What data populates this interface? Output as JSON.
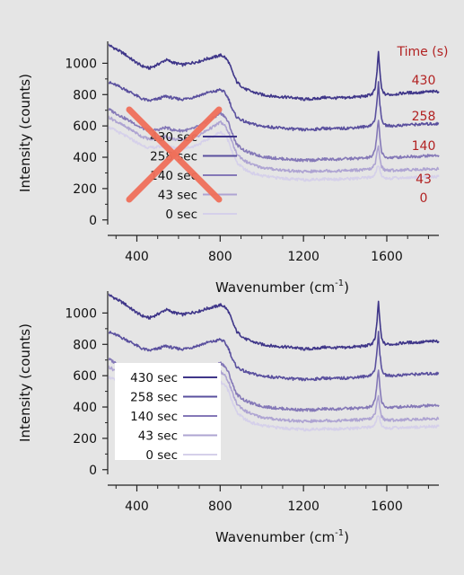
{
  "chart_data": [
    {
      "type": "line",
      "xlabel": "Wavenumber (cm",
      "xlabel_sup": "-1",
      "xlabel_close": ")",
      "ylabel": "Intensity (counts)",
      "xlim": [
        260,
        1850
      ],
      "ylim": [
        -30,
        1140
      ],
      "xticks": [
        400,
        800,
        1200,
        1600
      ],
      "yticks": [
        0,
        200,
        400,
        600,
        800,
        1000
      ],
      "legend": {
        "labels": [
          "430 sec",
          "258 sec",
          "140 sec",
          "43 sec",
          "0 sec"
        ],
        "position": "left",
        "crossed_out": true
      },
      "annotation": {
        "title": "Time (s)",
        "labels": [
          "430",
          "258",
          "140",
          "43",
          "0"
        ],
        "position": "right",
        "color": "#b22222"
      },
      "series": [
        {
          "name": "430 sec",
          "color": "#3f3689",
          "x": [
            260,
            300,
            340,
            380,
            420,
            460,
            500,
            540,
            580,
            620,
            660,
            700,
            740,
            780,
            800,
            820,
            840,
            860,
            880,
            920,
            960,
            1000,
            1050,
            1100,
            1150,
            1200,
            1250,
            1300,
            1350,
            1400,
            1450,
            1500,
            1530,
            1545,
            1553,
            1560,
            1567,
            1575,
            1590,
            1620,
            1660,
            1700,
            1750,
            1800,
            1850
          ],
          "y": [
            1120,
            1090,
            1060,
            1020,
            985,
            968,
            992,
            1022,
            1002,
            990,
            1002,
            1012,
            1030,
            1042,
            1052,
            1042,
            1010,
            940,
            880,
            835,
            815,
            800,
            790,
            785,
            780,
            770,
            772,
            782,
            778,
            780,
            785,
            790,
            805,
            840,
            950,
            1075,
            940,
            835,
            802,
            800,
            806,
            812,
            812,
            818,
            820
          ]
        },
        {
          "name": "258 sec",
          "color": "#5a509e",
          "x": [
            260,
            300,
            340,
            380,
            420,
            460,
            500,
            540,
            580,
            620,
            660,
            700,
            740,
            780,
            800,
            820,
            840,
            860,
            880,
            920,
            960,
            1000,
            1050,
            1100,
            1150,
            1200,
            1250,
            1300,
            1350,
            1400,
            1450,
            1500,
            1530,
            1545,
            1553,
            1560,
            1567,
            1575,
            1590,
            1620,
            1660,
            1700,
            1750,
            1800,
            1850
          ],
          "y": [
            880,
            860,
            835,
            808,
            775,
            760,
            772,
            790,
            775,
            770,
            780,
            795,
            812,
            822,
            832,
            815,
            775,
            700,
            655,
            625,
            610,
            598,
            592,
            585,
            580,
            575,
            578,
            585,
            582,
            585,
            590,
            595,
            610,
            650,
            760,
            880,
            740,
            640,
            605,
            600,
            603,
            608,
            610,
            612,
            615
          ]
        },
        {
          "name": "140 sec",
          "color": "#8478b7",
          "x": [
            260,
            300,
            340,
            380,
            420,
            460,
            500,
            540,
            580,
            620,
            660,
            700,
            740,
            780,
            800,
            820,
            840,
            860,
            880,
            920,
            960,
            1000,
            1050,
            1100,
            1150,
            1200,
            1250,
            1300,
            1350,
            1400,
            1450,
            1500,
            1530,
            1545,
            1553,
            1560,
            1567,
            1575,
            1590,
            1620,
            1660,
            1700,
            1750,
            1800,
            1850
          ],
          "y": [
            710,
            680,
            650,
            622,
            588,
            570,
            575,
            590,
            572,
            570,
            578,
            600,
            632,
            662,
            682,
            665,
            620,
            545,
            480,
            440,
            420,
            405,
            396,
            390,
            385,
            380,
            382,
            388,
            386,
            390,
            392,
            395,
            405,
            450,
            560,
            640,
            530,
            430,
            400,
            398,
            400,
            405,
            405,
            410,
            412
          ]
        },
        {
          "name": "43 sec",
          "color": "#aea4d2",
          "x": [
            260,
            300,
            340,
            380,
            420,
            460,
            500,
            540,
            580,
            620,
            660,
            700,
            740,
            780,
            800,
            820,
            840,
            860,
            880,
            920,
            960,
            1000,
            1050,
            1100,
            1150,
            1200,
            1250,
            1300,
            1350,
            1400,
            1450,
            1500,
            1530,
            1545,
            1553,
            1560,
            1567,
            1575,
            1590,
            1620,
            1660,
            1700,
            1750,
            1800,
            1850
          ],
          "y": [
            660,
            630,
            598,
            570,
            535,
            515,
            520,
            532,
            515,
            512,
            520,
            540,
            575,
            605,
            625,
            605,
            562,
            485,
            420,
            375,
            350,
            335,
            325,
            318,
            312,
            308,
            310,
            315,
            312,
            315,
            318,
            320,
            330,
            360,
            430,
            470,
            400,
            340,
            318,
            316,
            318,
            320,
            322,
            325,
            326
          ]
        },
        {
          "name": "0 sec",
          "color": "#d5d0ea",
          "x": [
            260,
            300,
            340,
            380,
            420,
            460,
            500,
            540,
            580,
            620,
            660,
            700,
            740,
            780,
            800,
            820,
            840,
            860,
            880,
            920,
            960,
            1000,
            1050,
            1100,
            1150,
            1200,
            1250,
            1300,
            1350,
            1400,
            1450,
            1500,
            1530,
            1545,
            1553,
            1560,
            1567,
            1575,
            1590,
            1620,
            1660,
            1700,
            1750,
            1800,
            1850
          ],
          "y": [
            595,
            568,
            540,
            510,
            478,
            460,
            465,
            475,
            460,
            458,
            465,
            485,
            515,
            545,
            560,
            545,
            505,
            430,
            365,
            320,
            296,
            282,
            272,
            266,
            260,
            256,
            258,
            262,
            260,
            262,
            265,
            268,
            275,
            295,
            330,
            350,
            315,
            280,
            268,
            266,
            268,
            270,
            272,
            275,
            276
          ]
        }
      ]
    },
    {
      "type": "line",
      "xlabel": "Wavenumber (cm",
      "xlabel_sup": "-1",
      "xlabel_close": ")",
      "ylabel": "Intensity (counts)",
      "xlim": [
        260,
        1850
      ],
      "ylim": [
        -30,
        1140
      ],
      "xticks": [
        400,
        800,
        1200,
        1600
      ],
      "yticks": [
        0,
        200,
        400,
        600,
        800,
        1000
      ],
      "legend": {
        "labels": [
          "430 sec",
          "258 sec",
          "140 sec",
          "43 sec",
          "0 sec"
        ],
        "position": "left",
        "crossed_out": false
      },
      "series": [
        {
          "name": "430 sec",
          "color": "#3f3689",
          "x": [
            260,
            300,
            340,
            380,
            420,
            460,
            500,
            540,
            580,
            620,
            660,
            700,
            740,
            780,
            800,
            820,
            840,
            860,
            880,
            920,
            960,
            1000,
            1050,
            1100,
            1150,
            1200,
            1250,
            1300,
            1350,
            1400,
            1450,
            1500,
            1530,
            1545,
            1553,
            1560,
            1567,
            1575,
            1590,
            1620,
            1660,
            1700,
            1750,
            1800,
            1850
          ],
          "y": [
            1120,
            1090,
            1060,
            1020,
            985,
            968,
            992,
            1022,
            1002,
            990,
            1002,
            1012,
            1030,
            1042,
            1052,
            1042,
            1010,
            940,
            880,
            835,
            815,
            800,
            790,
            785,
            780,
            770,
            772,
            782,
            778,
            780,
            785,
            790,
            805,
            840,
            950,
            1075,
            940,
            835,
            802,
            800,
            806,
            812,
            812,
            818,
            820
          ]
        },
        {
          "name": "258 sec",
          "color": "#5a509e",
          "x": [
            260,
            300,
            340,
            380,
            420,
            460,
            500,
            540,
            580,
            620,
            660,
            700,
            740,
            780,
            800,
            820,
            840,
            860,
            880,
            920,
            960,
            1000,
            1050,
            1100,
            1150,
            1200,
            1250,
            1300,
            1350,
            1400,
            1450,
            1500,
            1530,
            1545,
            1553,
            1560,
            1567,
            1575,
            1590,
            1620,
            1660,
            1700,
            1750,
            1800,
            1850
          ],
          "y": [
            880,
            860,
            835,
            808,
            775,
            760,
            772,
            790,
            775,
            770,
            780,
            795,
            812,
            822,
            832,
            815,
            775,
            700,
            655,
            625,
            610,
            598,
            592,
            585,
            580,
            575,
            578,
            585,
            582,
            585,
            590,
            595,
            610,
            650,
            760,
            880,
            740,
            640,
            605,
            600,
            603,
            608,
            610,
            612,
            615
          ]
        },
        {
          "name": "140 sec",
          "color": "#8478b7",
          "x": [
            260,
            300,
            340,
            380,
            420,
            460,
            500,
            540,
            580,
            620,
            660,
            700,
            740,
            780,
            800,
            820,
            840,
            860,
            880,
            920,
            960,
            1000,
            1050,
            1100,
            1150,
            1200,
            1250,
            1300,
            1350,
            1400,
            1450,
            1500,
            1530,
            1545,
            1553,
            1560,
            1567,
            1575,
            1590,
            1620,
            1660,
            1700,
            1750,
            1800,
            1850
          ],
          "y": [
            710,
            680,
            650,
            622,
            588,
            570,
            575,
            590,
            572,
            570,
            578,
            600,
            632,
            662,
            682,
            665,
            620,
            545,
            480,
            440,
            420,
            405,
            396,
            390,
            385,
            380,
            382,
            388,
            386,
            390,
            392,
            395,
            405,
            450,
            560,
            640,
            530,
            430,
            400,
            398,
            400,
            405,
            405,
            410,
            412
          ]
        },
        {
          "name": "43 sec",
          "color": "#aea4d2",
          "x": [
            260,
            300,
            340,
            380,
            420,
            460,
            500,
            540,
            580,
            620,
            660,
            700,
            740,
            780,
            800,
            820,
            840,
            860,
            880,
            920,
            960,
            1000,
            1050,
            1100,
            1150,
            1200,
            1250,
            1300,
            1350,
            1400,
            1450,
            1500,
            1530,
            1545,
            1553,
            1560,
            1567,
            1575,
            1590,
            1620,
            1660,
            1700,
            1750,
            1800,
            1850
          ],
          "y": [
            660,
            630,
            598,
            570,
            535,
            515,
            520,
            532,
            515,
            512,
            520,
            540,
            575,
            605,
            625,
            605,
            562,
            485,
            420,
            375,
            350,
            335,
            325,
            318,
            312,
            308,
            310,
            315,
            312,
            315,
            318,
            320,
            330,
            360,
            430,
            470,
            400,
            340,
            318,
            316,
            318,
            320,
            322,
            325,
            326
          ]
        },
        {
          "name": "0 sec",
          "color": "#d5d0ea",
          "x": [
            260,
            300,
            340,
            380,
            420,
            460,
            500,
            540,
            580,
            620,
            660,
            700,
            740,
            780,
            800,
            820,
            840,
            860,
            880,
            920,
            960,
            1000,
            1050,
            1100,
            1150,
            1200,
            1250,
            1300,
            1350,
            1400,
            1450,
            1500,
            1530,
            1545,
            1553,
            1560,
            1567,
            1575,
            1590,
            1620,
            1660,
            1700,
            1750,
            1800,
            1850
          ],
          "y": [
            595,
            568,
            540,
            510,
            478,
            460,
            465,
            475,
            460,
            458,
            465,
            485,
            515,
            545,
            560,
            545,
            505,
            430,
            365,
            320,
            296,
            282,
            272,
            266,
            260,
            256,
            258,
            262,
            260,
            262,
            265,
            268,
            275,
            295,
            330,
            350,
            315,
            280,
            268,
            266,
            268,
            270,
            272,
            275,
            276
          ]
        }
      ]
    }
  ]
}
